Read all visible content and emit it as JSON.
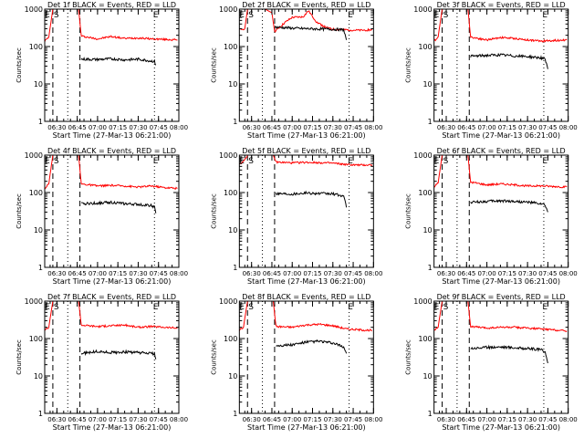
{
  "figure": {
    "ylabel": "Counts/sec",
    "xlabel": "Start Time (27-Mar-13 06:21:00)",
    "legend_suffix": "BLACK = Events, RED = LLD",
    "x_ticks": [
      "06:30",
      "06:45",
      "07:00",
      "07:15",
      "07:30",
      "07:45",
      "08:00"
    ],
    "y_ticks": [
      "1",
      "10",
      "100",
      "1000"
    ],
    "marker_labels": {
      "E": "E",
      "S": "S"
    },
    "colors": {
      "events": "#000000",
      "lld": "#ff0000"
    }
  },
  "chart_data": [
    {
      "type": "line",
      "title": "Det 1f BLACK = Events, RED = LLD",
      "xlabel": "Start Time (27-Mar-13 06:21:00)",
      "ylabel": "Counts/sec",
      "xlim": [
        "06:21",
        "08:00"
      ],
      "ylim": [
        1,
        1000
      ],
      "yscale": "log",
      "markers": {
        "E": [
          "06:23",
          "07:43"
        ],
        "S": [
          "06:27"
        ]
      },
      "dashed_lines": [
        "06:27",
        "06:47"
      ],
      "dotted_lines": [
        "06:38",
        "07:42"
      ],
      "series": [
        {
          "name": "RED = LLD",
          "x": [
            "06:21",
            "06:24",
            "06:27",
            "06:28",
            "06:46",
            "06:48",
            "07:00",
            "07:10",
            "07:20",
            "07:30",
            "07:40",
            "07:50",
            "07:59"
          ],
          "values": [
            140,
            180,
            1000,
            1000,
            1000,
            190,
            160,
            185,
            165,
            170,
            160,
            155,
            150
          ]
        },
        {
          "name": "BLACK = Events",
          "x": [
            "06:48",
            "07:00",
            "07:10",
            "07:20",
            "07:30",
            "07:40",
            "07:42",
            "07:43"
          ],
          "values": [
            46,
            45,
            47,
            44,
            46,
            41,
            40,
            32
          ]
        }
      ]
    },
    {
      "type": "line",
      "title": "Det 2f BLACK = Events, RED = LLD",
      "xlabel": "Start Time (27-Mar-13 06:21:00)",
      "ylabel": "Counts/sec",
      "xlim": [
        "06:21",
        "08:00"
      ],
      "ylim": [
        1,
        1000
      ],
      "yscale": "log",
      "markers": {
        "E": [
          "06:23",
          "07:43"
        ],
        "S": [
          "06:27"
        ]
      },
      "dashed_lines": [
        "06:27",
        "06:47"
      ],
      "dotted_lines": [
        "06:38",
        "07:42"
      ],
      "series": [
        {
          "name": "RED = LLD",
          "x": [
            "06:21",
            "06:25",
            "06:27",
            "06:28",
            "06:40",
            "06:45",
            "06:47",
            "06:55",
            "07:00",
            "07:08",
            "07:12",
            "07:18",
            "07:25",
            "07:30",
            "07:40",
            "07:50",
            "07:59"
          ],
          "values": [
            280,
            300,
            1000,
            1000,
            1000,
            800,
            250,
            450,
            600,
            620,
            900,
            450,
            320,
            290,
            280,
            270,
            280
          ]
        },
        {
          "name": "BLACK = Events",
          "x": [
            "06:47",
            "06:55",
            "07:00",
            "07:10",
            "07:20",
            "07:30",
            "07:38",
            "07:40"
          ],
          "values": [
            330,
            320,
            310,
            300,
            295,
            290,
            280,
            150
          ]
        }
      ]
    },
    {
      "type": "line",
      "title": "Det 3f BLACK = Events, RED = LLD",
      "xlabel": "Start Time (27-Mar-13 06:21:00)",
      "ylabel": "Counts/sec",
      "xlim": [
        "06:21",
        "08:00"
      ],
      "ylim": [
        1,
        1000
      ],
      "yscale": "log",
      "markers": {
        "E": [
          "06:23",
          "07:43"
        ],
        "S": [
          "06:27"
        ]
      },
      "dashed_lines": [
        "06:27",
        "06:47"
      ],
      "dotted_lines": [
        "06:38",
        "07:42"
      ],
      "series": [
        {
          "name": "RED = LLD",
          "x": [
            "06:21",
            "06:24",
            "06:27",
            "06:28",
            "06:46",
            "06:48",
            "07:00",
            "07:10",
            "07:20",
            "07:30",
            "07:40",
            "07:50",
            "07:59"
          ],
          "values": [
            140,
            180,
            1000,
            1000,
            1000,
            180,
            150,
            175,
            165,
            150,
            140,
            145,
            150
          ]
        },
        {
          "name": "BLACK = Events",
          "x": [
            "06:48",
            "07:00",
            "07:10",
            "07:20",
            "07:30",
            "07:40",
            "07:43",
            "07:45"
          ],
          "values": [
            55,
            58,
            60,
            56,
            54,
            50,
            45,
            25
          ]
        }
      ]
    },
    {
      "type": "line",
      "title": "Det 4f BLACK = Events, RED = LLD",
      "xlabel": "Start Time (27-Mar-13 06:21:00)",
      "ylabel": "Counts/sec",
      "xlim": [
        "06:21",
        "08:00"
      ],
      "ylim": [
        1,
        1000
      ],
      "yscale": "log",
      "markers": {
        "E": [
          "06:23",
          "07:43"
        ],
        "S": [
          "06:27"
        ]
      },
      "dashed_lines": [
        "06:27",
        "06:47"
      ],
      "dotted_lines": [
        "06:38",
        "07:42"
      ],
      "series": [
        {
          "name": "RED = LLD",
          "x": [
            "06:21",
            "06:24",
            "06:27",
            "06:28",
            "06:46",
            "06:48",
            "07:00",
            "07:10",
            "07:20",
            "07:30",
            "07:40",
            "07:50",
            "07:59"
          ],
          "values": [
            130,
            170,
            1000,
            1000,
            1000,
            170,
            150,
            155,
            150,
            140,
            150,
            135,
            130
          ]
        },
        {
          "name": "BLACK = Events",
          "x": [
            "06:48",
            "07:00",
            "07:10",
            "07:20",
            "07:30",
            "07:40",
            "07:42",
            "07:43"
          ],
          "values": [
            50,
            52,
            55,
            50,
            48,
            45,
            40,
            28
          ]
        }
      ]
    },
    {
      "type": "line",
      "title": "Det 5f BLACK = Events, RED = LLD",
      "xlabel": "Start Time (27-Mar-13 06:21:00)",
      "ylabel": "Counts/sec",
      "xlim": [
        "06:21",
        "08:00"
      ],
      "ylim": [
        1,
        1000
      ],
      "yscale": "log",
      "markers": {
        "E": [
          "06:23",
          "07:43"
        ],
        "S": [
          "06:27"
        ]
      },
      "dashed_lines": [
        "06:27",
        "06:47"
      ],
      "dotted_lines": [
        "06:38",
        "07:42"
      ],
      "series": [
        {
          "name": "RED = LLD",
          "x": [
            "06:21",
            "06:24",
            "06:27",
            "06:28",
            "06:46",
            "06:48",
            "07:00",
            "07:10",
            "07:20",
            "07:30",
            "07:40",
            "07:50",
            "07:59"
          ],
          "values": [
            600,
            650,
            1000,
            1000,
            1000,
            650,
            620,
            640,
            630,
            610,
            560,
            540,
            550
          ]
        },
        {
          "name": "BLACK = Events",
          "x": [
            "06:48",
            "07:00",
            "07:10",
            "07:20",
            "07:30",
            "07:38",
            "07:40"
          ],
          "values": [
            95,
            92,
            98,
            94,
            92,
            80,
            40
          ]
        }
      ]
    },
    {
      "type": "line",
      "title": "Det 6f BLACK = Events, RED = LLD",
      "xlabel": "Start Time (27-Mar-13 06:21:00)",
      "ylabel": "Counts/sec",
      "xlim": [
        "06:21",
        "08:00"
      ],
      "ylim": [
        1,
        1000
      ],
      "yscale": "log",
      "markers": {
        "E": [
          "06:23",
          "07:43"
        ],
        "S": [
          "06:27"
        ]
      },
      "dashed_lines": [
        "06:27",
        "06:47"
      ],
      "dotted_lines": [
        "06:38",
        "07:42"
      ],
      "series": [
        {
          "name": "RED = LLD",
          "x": [
            "06:21",
            "06:24",
            "06:27",
            "06:28",
            "06:46",
            "06:48",
            "07:00",
            "07:10",
            "07:20",
            "07:30",
            "07:40",
            "07:50",
            "07:59"
          ],
          "values": [
            140,
            180,
            1000,
            1000,
            1000,
            190,
            160,
            170,
            160,
            150,
            150,
            145,
            140
          ]
        },
        {
          "name": "BLACK = Events",
          "x": [
            "06:48",
            "07:00",
            "07:10",
            "07:20",
            "07:30",
            "07:40",
            "07:43",
            "07:45"
          ],
          "values": [
            55,
            58,
            60,
            58,
            55,
            50,
            45,
            30
          ]
        }
      ]
    },
    {
      "type": "line",
      "title": "Det 7f BLACK = Events, RED = LLD",
      "xlabel": "Start Time (27-Mar-13 06:21:00)",
      "ylabel": "Counts/sec",
      "xlim": [
        "06:21",
        "08:00"
      ],
      "ylim": [
        1,
        1000
      ],
      "yscale": "log",
      "markers": {
        "E": [
          "06:23",
          "07:43"
        ],
        "S": [
          "06:27"
        ]
      },
      "dashed_lines": [
        "06:27",
        "06:47"
      ],
      "dotted_lines": [
        "06:38",
        "07:42"
      ],
      "series": [
        {
          "name": "RED = LLD",
          "x": [
            "06:21",
            "06:24",
            "06:27",
            "06:28",
            "06:46",
            "06:48",
            "07:00",
            "07:10",
            "07:20",
            "07:30",
            "07:40",
            "07:50",
            "07:59"
          ],
          "values": [
            170,
            200,
            1000,
            1000,
            1000,
            230,
            210,
            220,
            230,
            200,
            210,
            200,
            190
          ]
        },
        {
          "name": "BLACK = Events",
          "x": [
            "06:48",
            "07:00",
            "07:10",
            "07:20",
            "07:30",
            "07:40",
            "07:42",
            "07:43"
          ],
          "values": [
            40,
            45,
            42,
            44,
            42,
            40,
            38,
            28
          ]
        }
      ]
    },
    {
      "type": "line",
      "title": "Det 8f BLACK = Events, RED = LLD",
      "xlabel": "Start Time (27-Mar-13 06:21:00)",
      "ylabel": "Counts/sec",
      "xlim": [
        "06:21",
        "08:00"
      ],
      "ylim": [
        1,
        1000
      ],
      "yscale": "log",
      "markers": {
        "E": [
          "06:23",
          "07:43"
        ],
        "S": [
          "06:27"
        ]
      },
      "dashed_lines": [
        "06:27",
        "06:47"
      ],
      "dotted_lines": [
        "06:38",
        "07:42"
      ],
      "series": [
        {
          "name": "RED = LLD",
          "x": [
            "06:21",
            "06:24",
            "06:27",
            "06:28",
            "06:46",
            "06:48",
            "07:00",
            "07:10",
            "07:20",
            "07:30",
            "07:40",
            "07:50",
            "07:59"
          ],
          "values": [
            170,
            200,
            1000,
            1000,
            1000,
            210,
            200,
            230,
            240,
            220,
            180,
            170,
            165
          ]
        },
        {
          "name": "BLACK = Events",
          "x": [
            "06:48",
            "07:00",
            "07:10",
            "07:20",
            "07:30",
            "07:38",
            "07:40"
          ],
          "values": [
            65,
            68,
            80,
            85,
            75,
            60,
            40
          ]
        }
      ]
    },
    {
      "type": "line",
      "title": "Det 9f BLACK = Events, RED = LLD",
      "xlabel": "Start Time (27-Mar-13 06:21:00)",
      "ylabel": "Counts/sec",
      "xlim": [
        "06:21",
        "08:00"
      ],
      "ylim": [
        1,
        1000
      ],
      "yscale": "log",
      "markers": {
        "E": [
          "06:23",
          "07:43"
        ],
        "S": [
          "06:27"
        ]
      },
      "dashed_lines": [
        "06:27",
        "06:47"
      ],
      "dotted_lines": [
        "06:38",
        "07:42"
      ],
      "series": [
        {
          "name": "RED = LLD",
          "x": [
            "06:21",
            "06:24",
            "06:27",
            "06:28",
            "06:46",
            "06:48",
            "07:00",
            "07:10",
            "07:20",
            "07:30",
            "07:40",
            "07:50",
            "07:59"
          ],
          "values": [
            170,
            200,
            1000,
            1000,
            1000,
            210,
            190,
            200,
            200,
            190,
            180,
            170,
            160
          ]
        },
        {
          "name": "BLACK = Events",
          "x": [
            "06:48",
            "07:00",
            "07:10",
            "07:20",
            "07:30",
            "07:40",
            "07:43",
            "07:45"
          ],
          "values": [
            55,
            58,
            60,
            57,
            54,
            50,
            45,
            22
          ]
        }
      ]
    }
  ]
}
